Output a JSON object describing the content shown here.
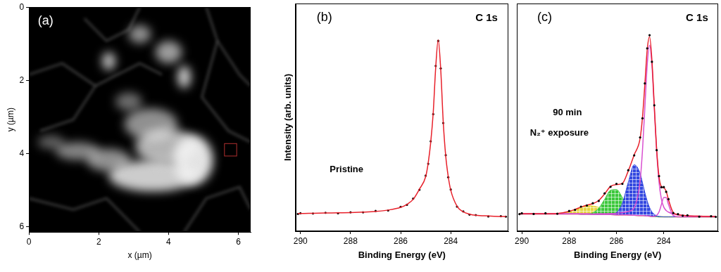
{
  "chart_data": [
    {
      "type": "image",
      "title": "(a)",
      "xlabel": "x (µm)",
      "ylabel": "y (µm)",
      "xlim": [
        0,
        6.35
      ],
      "xticks": [
        0,
        2,
        4,
        6
      ],
      "ylim": [
        6.15,
        0
      ],
      "yticks": [
        0,
        2,
        4,
        6
      ],
      "region": {
        "x": [
          5.6,
          5.95
        ],
        "y": [
          3.73,
          4.07
        ],
        "color": "#b03030"
      },
      "grid": false
    },
    {
      "type": "line",
      "title": "(b)",
      "xlabel": "Binding Energy (eV)",
      "ylabel": "Intensity (arb. units)",
      "annotations": [
        "C 1s",
        "Pristine"
      ],
      "xlim": [
        290.2,
        281.7
      ],
      "xticks": [
        290,
        288,
        286,
        284
      ],
      "ylim": [
        0,
        100
      ],
      "grid": false,
      "tick_labels": "x",
      "x": [
        290.1,
        290,
        289.5,
        289,
        288.5,
        288,
        287.5,
        287,
        286.5,
        286,
        285.75,
        285.5,
        285.25,
        285,
        284.9,
        284.8,
        284.7,
        284.6,
        284.5,
        284.4,
        284.3,
        284.2,
        284.1,
        284,
        283.75,
        283.5,
        283.25,
        283,
        282.5,
        282,
        281.8
      ],
      "series": [
        {
          "type": "scatter",
          "marker": "circle",
          "color": "#000000",
          "values": [
            7.6,
            7.9,
            7.8,
            8.1,
            7.9,
            8.3,
            8.3,
            8.9,
            9.1,
            10.7,
            11.6,
            14.3,
            18.2,
            24.4,
            29.6,
            39.5,
            51.4,
            72.6,
            83.6,
            71.5,
            47.5,
            33.4,
            23.7,
            18.3,
            10.8,
            8.7,
            7.3,
            7.1,
            6.5,
            6.6,
            6.4
          ]
        },
        {
          "type": "line",
          "color": "#e8202a",
          "values": [
            7.8,
            7.8,
            7.9,
            8.0,
            8.1,
            8.2,
            8.4,
            8.7,
            9.3,
            10.5,
            11.8,
            14,
            18.5,
            24,
            30,
            39,
            52,
            72,
            84,
            71,
            48,
            33,
            24,
            18,
            11,
            8.5,
            7.5,
            7,
            6.7,
            6.5,
            6.5
          ]
        }
      ]
    },
    {
      "type": "line",
      "title": "(c)",
      "xlabel": "Binding Energy (eV)",
      "annotations": [
        "C 1s",
        "90 min",
        "N₂⁺ exposure"
      ],
      "xlim": [
        290.2,
        281.7
      ],
      "xticks": [
        290,
        288,
        286,
        284
      ],
      "ylim": [
        0,
        100
      ],
      "grid": false,
      "tick_labels": "x",
      "x": [
        290.1,
        290,
        289.5,
        289,
        288.5,
        288,
        287.75,
        287.5,
        287.25,
        287,
        286.75,
        286.5,
        286.25,
        286,
        285.75,
        285.5,
        285.25,
        285,
        284.9,
        284.8,
        284.7,
        284.6,
        284.5,
        284.4,
        284.3,
        284.2,
        284.1,
        284,
        283.9,
        283.8,
        283.6,
        283.4,
        283.2,
        283,
        282.5,
        282,
        281.8
      ],
      "series": [
        {
          "type": "line",
          "color": "#c8b432",
          "values": [
            7.6,
            7.6,
            7.6,
            7.6,
            7.6,
            7.6,
            7.6,
            7.5,
            7.5,
            7.4,
            7.4,
            7.3,
            7.3,
            7.2,
            7.2,
            7.1,
            7.0,
            6.9,
            6.9,
            6.8,
            6.7,
            6.6,
            6.5,
            6.4,
            6.4,
            6.3,
            6.3,
            6.3,
            6.3,
            6.3,
            6.3,
            6.3,
            6.3,
            6.3,
            6.3,
            6.3,
            6.3
          ]
        },
        {
          "type": "area",
          "color": "#e6d640",
          "values": [
            7.6,
            7.6,
            7.6,
            7.6,
            7.8,
            8.6,
            9.5,
            10.4,
            11.2,
            11.1,
            10.5,
            9.4,
            8.5,
            7.7,
            7.4,
            7.2,
            7.0,
            6.9,
            6.9,
            6.8,
            6.7,
            6.6,
            6.5,
            6.4,
            6.4,
            6.3,
            6.3,
            6.3,
            6.3,
            6.3,
            6.3,
            6.3,
            6.3,
            6.3,
            6.3,
            6.3,
            6.3
          ]
        },
        {
          "type": "area",
          "color": "#3cc83c",
          "values": [
            7.6,
            7.6,
            7.6,
            7.6,
            7.6,
            7.6,
            7.6,
            7.5,
            7.6,
            8.1,
            10.1,
            14.0,
            18.0,
            18.3,
            14.8,
            10.5,
            8.0,
            7.1,
            7.0,
            6.8,
            6.7,
            6.6,
            6.5,
            6.4,
            6.4,
            6.3,
            6.3,
            6.3,
            6.3,
            6.3,
            6.3,
            6.3,
            6.3,
            6.3,
            6.3,
            6.3,
            6.3
          ]
        },
        {
          "type": "area",
          "color": "#3348e0",
          "values": [
            7.6,
            7.6,
            7.6,
            7.6,
            7.6,
            7.6,
            7.6,
            7.5,
            7.5,
            7.4,
            7.4,
            7.3,
            7.4,
            8.2,
            12.3,
            21.5,
            29.2,
            25.4,
            21.3,
            17.0,
            13.3,
            10.4,
            8.5,
            7.4,
            6.8,
            6.5,
            6.4,
            6.3,
            6.3,
            6.3,
            6.3,
            6.3,
            6.3,
            6.3,
            6.3,
            6.3,
            6.3
          ]
        },
        {
          "type": "line",
          "color": "#d94fd0",
          "values": [
            7.7,
            7.7,
            7.7,
            7.7,
            7.7,
            7.7,
            7.7,
            7.7,
            7.7,
            7.6,
            7.7,
            7.7,
            7.8,
            7.9,
            8.2,
            8.7,
            10.4,
            22.1,
            35.5,
            54.2,
            73.1,
            81.6,
            72.9,
            53.8,
            35.0,
            21.5,
            14.1,
            10.6,
            9.1,
            8.4,
            7.6,
            7.2,
            7.0,
            6.8,
            6.6,
            6.5,
            6.5
          ]
        },
        {
          "type": "line",
          "color": "#d94fd0",
          "values": [
            7.6,
            7.6,
            7.6,
            7.6,
            7.6,
            7.6,
            7.6,
            7.5,
            7.5,
            7.4,
            7.4,
            7.3,
            7.3,
            7.2,
            7.2,
            7.1,
            7.0,
            6.9,
            6.9,
            6.8,
            6.7,
            6.6,
            6.5,
            6.5,
            7.0,
            8.5,
            11.7,
            14.8,
            14.8,
            11.7,
            6.9,
            6.3,
            6.3,
            6.3,
            6.3,
            6.3,
            6.3
          ]
        },
        {
          "type": "line",
          "color": "#e8202a",
          "values": [
            7.7,
            7.7,
            7.7,
            7.7,
            7.8,
            8.7,
            9.6,
            10.6,
            11.5,
            12.1,
            13.5,
            16.4,
            19.7,
            20.5,
            21.0,
            26.5,
            33.6,
            40.8,
            50.0,
            64.4,
            79.7,
            85.4,
            74.9,
            54.9,
            35.9,
            23.9,
            19.6,
            19.1,
            17.6,
            13.8,
            8.2,
            7.3,
            7.0,
            6.8,
            6.6,
            6.5,
            6.5
          ]
        },
        {
          "type": "scatter",
          "marker": "circle",
          "color": "#000000",
          "values": [
            7.5,
            7.9,
            7.6,
            7.9,
            7.7,
            8.9,
            9.4,
            10.8,
            11.3,
            12.3,
            13.3,
            16.6,
            19.5,
            20.8,
            20.8,
            26.8,
            33.3,
            41.2,
            49.6,
            64.9,
            80.3,
            86.1,
            74.4,
            55.3,
            35.6,
            24.2,
            19.3,
            19.4,
            17.3,
            14.1,
            8.0,
            7.5,
            6.8,
            7.0,
            6.4,
            6.6,
            6.3
          ]
        }
      ]
    }
  ]
}
